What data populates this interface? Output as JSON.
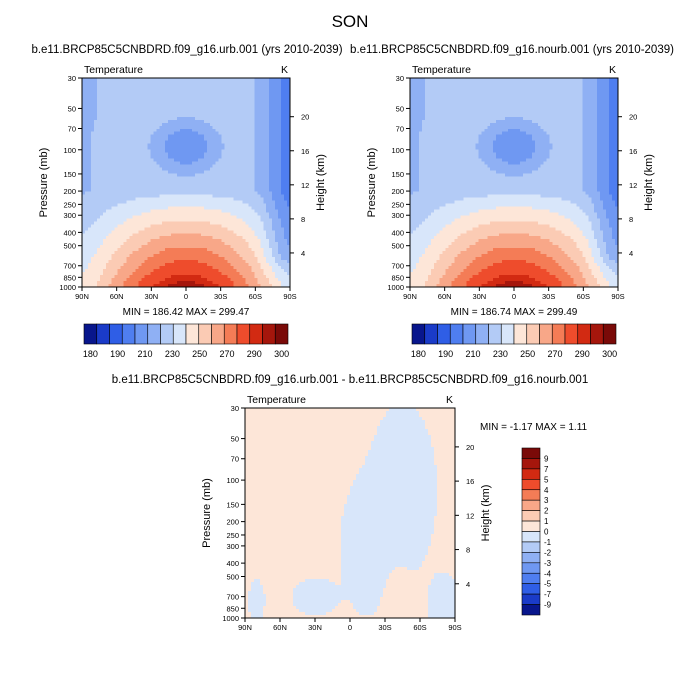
{
  "figure_title": "SON",
  "chart_data": [
    {
      "type": "heatmap",
      "title": "b.e11.BRCP85C5CNBDRD.f09_g16.urb.001 (yrs 2010-2039)",
      "left_label": "Temperature",
      "right_label": "K",
      "xlabel": "",
      "ylabel": "Pressure (mb)",
      "y2label": "Height (km)",
      "x_ticks": [
        "90N",
        "60N",
        "30N",
        "0",
        "30S",
        "60S",
        "90S"
      ],
      "y_ticks": [
        "30",
        "50",
        "70",
        "100",
        "150",
        "200",
        "250",
        "300",
        "400",
        "500",
        "700",
        "850",
        "1000"
      ],
      "y2_ticks": [
        "20",
        "16",
        "12",
        "8",
        "4"
      ],
      "y_scale": "log",
      "stats": "MIN = 186.42   MAX = 299.47",
      "min": 186.42,
      "max": 299.47,
      "colorbar_labels": [
        "180",
        "190",
        "210",
        "230",
        "250",
        "270",
        "290",
        "300"
      ],
      "colorbar_colors": [
        "#08168c",
        "#1a3bc8",
        "#2f5ee6",
        "#4f7ef0",
        "#6f98f2",
        "#8fb0f4",
        "#b3cbf6",
        "#d8e6fa",
        "#fde6d8",
        "#fbcbb4",
        "#f8a788",
        "#f47c56",
        "#ee4c2c",
        "#d22a12",
        "#a5160c",
        "#7a0a08"
      ],
      "field": "control"
    },
    {
      "type": "heatmap",
      "title": "b.e11.BRCP85C5CNBDRD.f09_g16.nourb.001 (yrs 2010-2039)",
      "left_label": "Temperature",
      "right_label": "K",
      "xlabel": "",
      "ylabel": "Pressure (mb)",
      "y2label": "Height (km)",
      "x_ticks": [
        "90N",
        "60N",
        "30N",
        "0",
        "30S",
        "60S",
        "90S"
      ],
      "y_ticks": [
        "30",
        "50",
        "70",
        "100",
        "150",
        "200",
        "250",
        "300",
        "400",
        "500",
        "700",
        "850",
        "1000"
      ],
      "y2_ticks": [
        "20",
        "16",
        "12",
        "8",
        "4"
      ],
      "y_scale": "log",
      "stats": "MIN = 186.74   MAX = 299.49",
      "min": 186.74,
      "max": 299.49,
      "colorbar_labels": [
        "180",
        "190",
        "210",
        "230",
        "250",
        "270",
        "290",
        "300"
      ],
      "colorbar_colors": [
        "#08168c",
        "#1a3bc8",
        "#2f5ee6",
        "#4f7ef0",
        "#6f98f2",
        "#8fb0f4",
        "#b3cbf6",
        "#d8e6fa",
        "#fde6d8",
        "#fbcbb4",
        "#f8a788",
        "#f47c56",
        "#ee4c2c",
        "#d22a12",
        "#a5160c",
        "#7a0a08"
      ],
      "field": "control"
    },
    {
      "type": "heatmap",
      "title": "b.e11.BRCP85C5CNBDRD.f09_g16.urb.001 - b.e11.BRCP85C5CNBDRD.f09_g16.nourb.001",
      "left_label": "Temperature",
      "right_label": "K",
      "xlabel": "",
      "ylabel": "Pressure (mb)",
      "y2label": "Height (km)",
      "x_ticks": [
        "90N",
        "60N",
        "30N",
        "0",
        "30S",
        "60S",
        "90S"
      ],
      "y_ticks": [
        "30",
        "50",
        "70",
        "100",
        "150",
        "200",
        "250",
        "300",
        "400",
        "500",
        "700",
        "850",
        "1000"
      ],
      "y2_ticks": [
        "20",
        "16",
        "12",
        "8",
        "4"
      ],
      "y_scale": "log",
      "stats": "MIN =  -1.17   MAX =   1.11",
      "min": -1.17,
      "max": 1.11,
      "colorbar_labels": [
        "9",
        "7",
        "5",
        "4",
        "3",
        "2",
        "1",
        "0",
        "-1",
        "-2",
        "-3",
        "-4",
        "-5",
        "-7",
        "-9"
      ],
      "colorbar_colors": [
        "#7a0a08",
        "#a5160c",
        "#d22a12",
        "#ee4c2c",
        "#f47c56",
        "#f8a788",
        "#fbcbb4",
        "#fde6d8",
        "#d8e6fa",
        "#b3cbf6",
        "#8fb0f4",
        "#6f98f2",
        "#4f7ef0",
        "#2f5ee6",
        "#1a3bc8",
        "#08168c"
      ],
      "field": "difference"
    }
  ]
}
